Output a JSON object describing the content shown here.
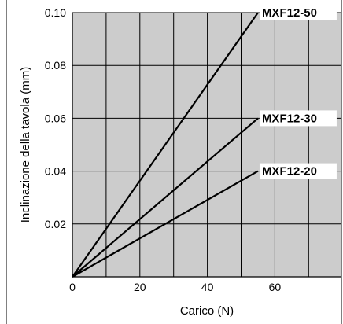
{
  "chart_data": {
    "type": "line",
    "xlabel": "Carico (N)",
    "ylabel": "Inclinazione della tavola (mm)",
    "xlim": [
      0,
      80
    ],
    "ylim": [
      0,
      0.1
    ],
    "xticks": [
      0,
      10,
      20,
      30,
      40,
      50,
      60,
      70,
      80
    ],
    "yticks": [
      0,
      0.02,
      0.04,
      0.06,
      0.08,
      0.1
    ],
    "xtick_labels": [
      {
        "value": 0,
        "label": "0"
      },
      {
        "value": 20,
        "label": "20"
      },
      {
        "value": 40,
        "label": "40"
      },
      {
        "value": 60,
        "label": "60"
      }
    ],
    "ytick_labels": [
      {
        "value": 0.02,
        "label": "0.02"
      },
      {
        "value": 0.04,
        "label": "0.04"
      },
      {
        "value": 0.06,
        "label": "0.06"
      },
      {
        "value": 0.08,
        "label": "0.08"
      },
      {
        "value": 0.1,
        "label": "0.10"
      }
    ],
    "grid": true,
    "colors": {
      "plot_background": "#cccccc",
      "grid": "#000000",
      "line": "#000000"
    },
    "series": [
      {
        "name": "MXF12-50",
        "x": [
          0,
          55
        ],
        "y": [
          0,
          0.1
        ]
      },
      {
        "name": "MXF12-30",
        "x": [
          0,
          55
        ],
        "y": [
          0,
          0.06
        ]
      },
      {
        "name": "MXF12-20",
        "x": [
          0,
          55
        ],
        "y": [
          0,
          0.04
        ]
      }
    ]
  }
}
